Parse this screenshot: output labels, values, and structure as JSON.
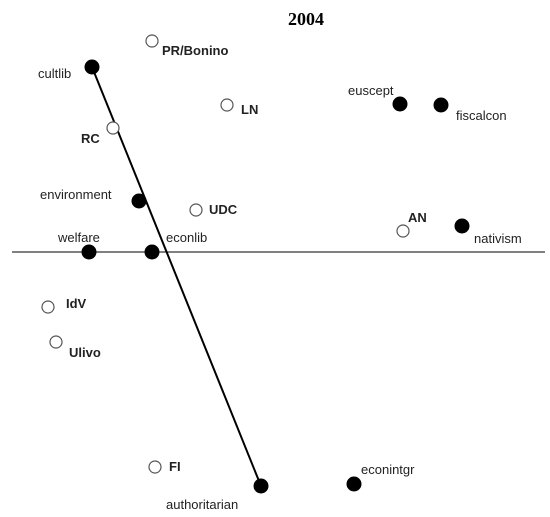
{
  "title": "2004",
  "issues": [
    {
      "id": "cultlib",
      "label": "cultlib"
    },
    {
      "id": "environment",
      "label": "environment"
    },
    {
      "id": "welfare",
      "label": "welfare"
    },
    {
      "id": "econlib",
      "label": "econlib"
    },
    {
      "id": "authoritarian",
      "label": "authoritarian"
    },
    {
      "id": "euscept",
      "label": "euscept"
    },
    {
      "id": "fiscalcon",
      "label": "fiscalcon"
    },
    {
      "id": "nativism",
      "label": "nativism"
    },
    {
      "id": "econintgr",
      "label": "econintgr"
    }
  ],
  "parties": [
    {
      "id": "pr-bonino",
      "label": "PR/Bonino"
    },
    {
      "id": "ln",
      "label": "LN"
    },
    {
      "id": "rc",
      "label": "RC"
    },
    {
      "id": "udc",
      "label": "UDC"
    },
    {
      "id": "an",
      "label": "AN"
    },
    {
      "id": "idv",
      "label": "IdV"
    },
    {
      "id": "ulivo",
      "label": "Ulivo"
    },
    {
      "id": "fi",
      "label": "FI"
    }
  ]
}
